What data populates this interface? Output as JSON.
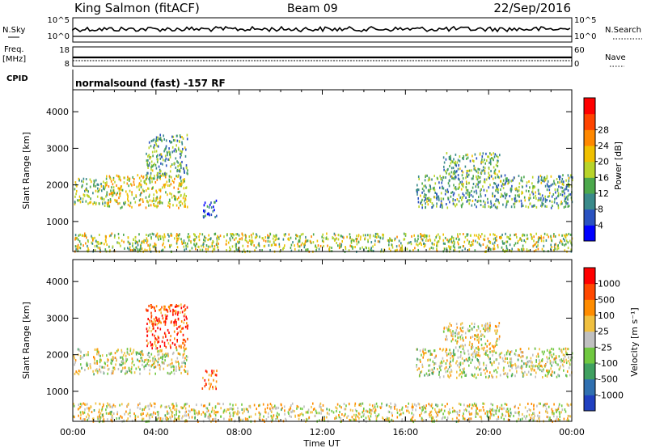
{
  "header": {
    "station": "King Salmon (fitACF)",
    "beam": "Beam 09",
    "date": "22/Sep/2016",
    "cpid_label": "CPID",
    "cpid_text": "normalsound (fast) -157 RF"
  },
  "strips": {
    "nsky_label": "N.Sky",
    "nsearch_label": "N.Search",
    "nsky_ticks": [
      "10^5",
      "10^0"
    ],
    "freq_label": "Freq.",
    "freq_unit": "[MHz]",
    "freq_ticks": [
      "18",
      "8"
    ],
    "nave_label": "Nave",
    "nave_ticks": [
      "60",
      "0"
    ]
  },
  "axes": {
    "xlabel": "Time UT",
    "x_ticks": [
      "00:00",
      "04:00",
      "08:00",
      "12:00",
      "16:00",
      "20:00",
      "00:00"
    ],
    "ylabel": "Slant Range [km]",
    "y_ticks": [
      "1000",
      "2000",
      "3000",
      "4000"
    ]
  },
  "colorbars": {
    "power": {
      "label": "Power [dB]",
      "ticks": [
        "4",
        "8",
        "12",
        "16",
        "20",
        "24",
        "28"
      ],
      "colors": [
        "#0000ff",
        "#2a52c0",
        "#3a8a8a",
        "#4ca84c",
        "#b8d42a",
        "#f0c000",
        "#ff8800",
        "#ff4400",
        "#ff0000"
      ]
    },
    "velocity": {
      "label": "Velocity [m s⁻¹]",
      "ticks": [
        "1000",
        "500",
        "100",
        "25",
        "-25",
        "-100",
        "-500",
        "-1000"
      ],
      "colors": [
        "#2040c0",
        "#3070b0",
        "#40a060",
        "#70c840",
        "#c0c0c0",
        "#f0c040",
        "#ff8c00",
        "#ff4800",
        "#ff0000"
      ]
    }
  },
  "chart_data": [
    {
      "type": "heatmap",
      "name": "power",
      "x_range": [
        0,
        24
      ],
      "ylim": [
        180,
        4600
      ],
      "regions": [
        {
          "t0": 0.0,
          "t1": 1.5,
          "r0": 1500,
          "r1": 2200,
          "level": 0.45
        },
        {
          "t0": 1.5,
          "t1": 5.5,
          "r0": 1400,
          "r1": 2300,
          "level": 0.55
        },
        {
          "t0": 3.5,
          "t1": 5.5,
          "r0": 2200,
          "r1": 3400,
          "level": 0.35
        },
        {
          "t0": 6.2,
          "t1": 6.9,
          "r0": 1100,
          "r1": 1600,
          "level": 0.2
        },
        {
          "t0": 16.5,
          "t1": 24.0,
          "r0": 1400,
          "r1": 2300,
          "level": 0.35
        },
        {
          "t0": 17.8,
          "t1": 20.5,
          "r0": 2200,
          "r1": 2900,
          "level": 0.4
        },
        {
          "t0": 0.0,
          "t1": 24.0,
          "r0": 200,
          "r1": 700,
          "level": 0.5
        }
      ]
    },
    {
      "type": "heatmap",
      "name": "velocity",
      "x_range": [
        0,
        24
      ],
      "ylim": [
        180,
        4600
      ],
      "regions": [
        {
          "t0": 0.0,
          "t1": 5.5,
          "r0": 1500,
          "r1": 2200,
          "level": 0.5
        },
        {
          "t0": 3.5,
          "t1": 5.5,
          "r0": 2200,
          "r1": 3400,
          "level": 0.85
        },
        {
          "t0": 6.2,
          "t1": 6.9,
          "r0": 1100,
          "r1": 1600,
          "level": 0.8
        },
        {
          "t0": 16.5,
          "t1": 24.0,
          "r0": 1400,
          "r1": 2200,
          "level": 0.5
        },
        {
          "t0": 17.8,
          "t1": 20.5,
          "r0": 2200,
          "r1": 2900,
          "level": 0.55
        },
        {
          "t0": 0.0,
          "t1": 24.0,
          "r0": 200,
          "r1": 700,
          "level": 0.55
        }
      ]
    }
  ]
}
